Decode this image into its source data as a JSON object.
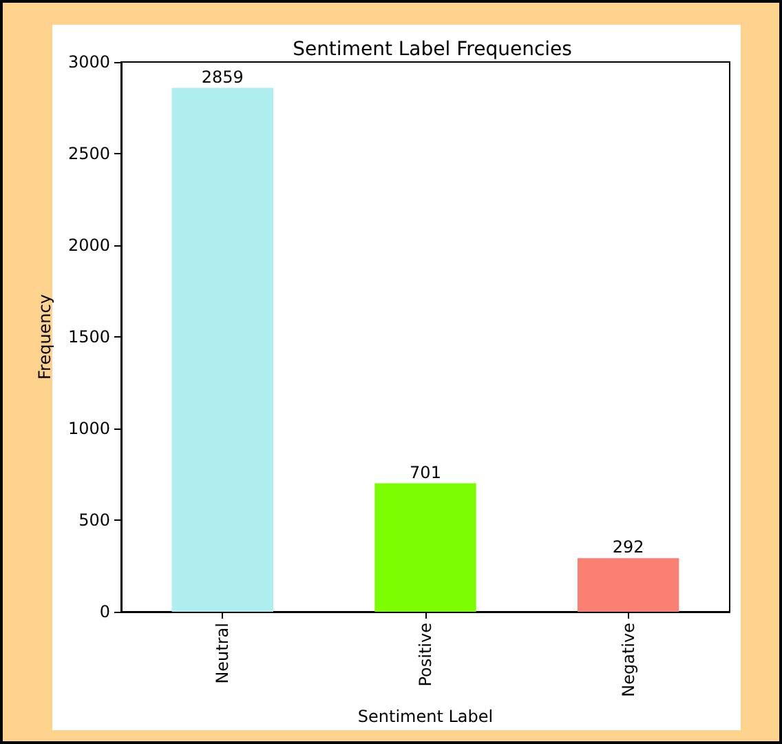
{
  "chart_data": {
    "type": "bar",
    "title": "Sentiment Label Frequencies",
    "xlabel": "Sentiment Label",
    "ylabel": "Frequency",
    "categories": [
      "Neutral",
      "Positive",
      "Negative"
    ],
    "values": [
      2859,
      701,
      292
    ],
    "colors": [
      "#afeeee",
      "#7cfc00",
      "#fa8072"
    ],
    "ylim": [
      0,
      3000
    ],
    "yticks": [
      0,
      500,
      1000,
      1500,
      2000,
      2500,
      3000
    ],
    "data_labels": true,
    "grid": false
  }
}
